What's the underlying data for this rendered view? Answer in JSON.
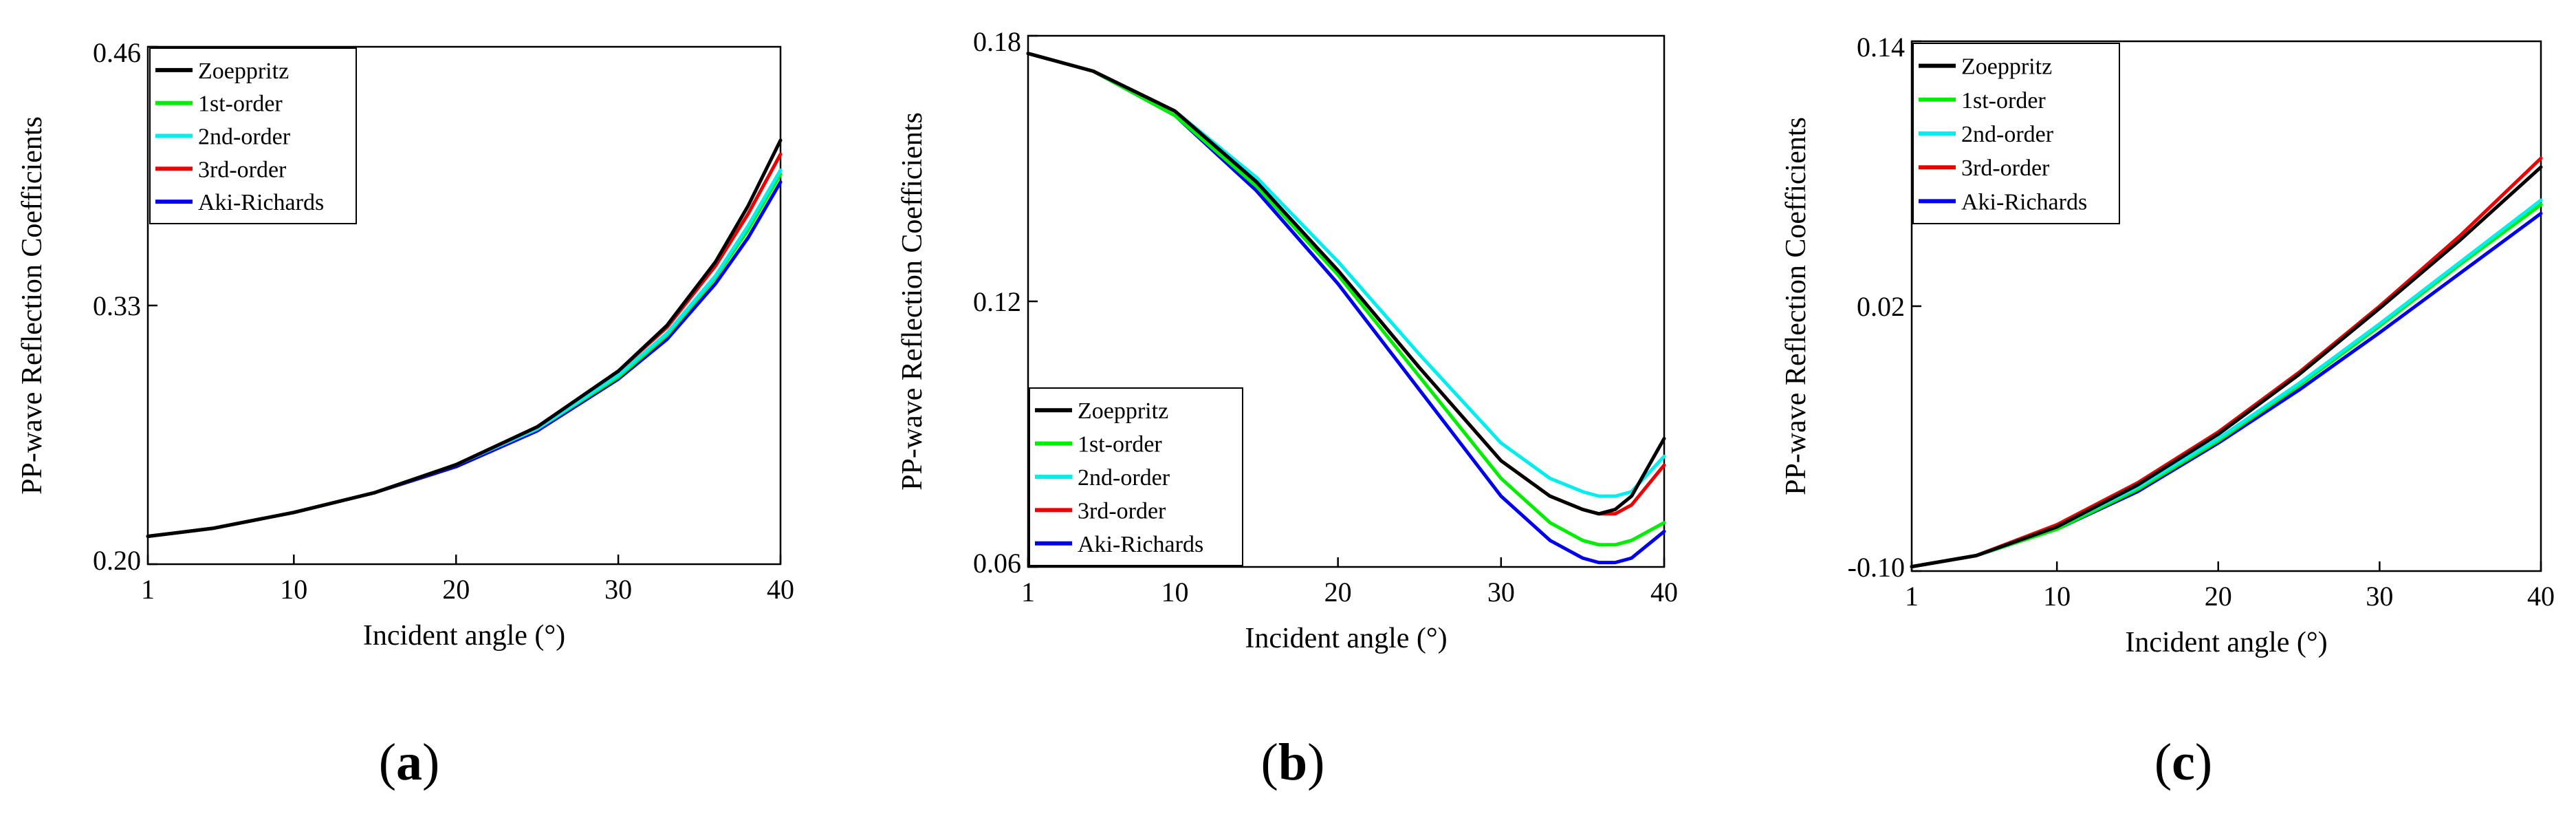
{
  "figure": {
    "panels": [
      "a",
      "b",
      "c"
    ]
  },
  "chart_data": [
    {
      "id": "a",
      "panel_label": "a",
      "type": "line",
      "title": "",
      "xlabel": "Incident angle (°)",
      "ylabel": "PP-wave Reflection Coefficients",
      "xlim": [
        1,
        40
      ],
      "ylim": [
        0.2,
        0.46
      ],
      "xticks": [
        1,
        10,
        20,
        30,
        40
      ],
      "yticks": [
        0.2,
        0.33,
        0.46
      ],
      "ytick_labels": [
        "0.20",
        "0.33",
        "0.46"
      ],
      "grid": false,
      "legend_position": "top-left",
      "x": [
        1,
        5,
        10,
        15,
        20,
        25,
        30,
        33,
        36,
        38,
        40
      ],
      "series": [
        {
          "name": "Zoeppritz",
          "color": "#000000",
          "values": [
            0.214,
            0.218,
            0.226,
            0.236,
            0.25,
            0.269,
            0.297,
            0.32,
            0.352,
            0.38,
            0.413
          ]
        },
        {
          "name": "1st-order",
          "color": "#00ee00",
          "values": [
            0.214,
            0.218,
            0.226,
            0.236,
            0.25,
            0.268,
            0.294,
            0.315,
            0.344,
            0.368,
            0.396
          ]
        },
        {
          "name": "2nd-order",
          "color": "#00eeee",
          "values": [
            0.214,
            0.218,
            0.226,
            0.236,
            0.25,
            0.268,
            0.295,
            0.316,
            0.345,
            0.37,
            0.398
          ]
        },
        {
          "name": "3rd-order",
          "color": "#ee0000",
          "values": [
            0.214,
            0.218,
            0.226,
            0.236,
            0.25,
            0.269,
            0.297,
            0.319,
            0.35,
            0.376,
            0.406
          ]
        },
        {
          "name": "Aki-Richards",
          "color": "#0000ee",
          "values": [
            0.214,
            0.218,
            0.226,
            0.236,
            0.249,
            0.267,
            0.293,
            0.313,
            0.341,
            0.364,
            0.392
          ]
        }
      ]
    },
    {
      "id": "b",
      "panel_label": "b",
      "type": "line",
      "title": "",
      "xlabel": "Incident angle (°)",
      "ylabel": "PP-wave Reflection Coefficients",
      "xlim": [
        1,
        40
      ],
      "ylim": [
        0.06,
        0.18
      ],
      "xticks": [
        1,
        10,
        20,
        30,
        40
      ],
      "yticks": [
        0.06,
        0.12,
        0.18
      ],
      "ytick_labels": [
        "0.06",
        "0.12",
        "0.18"
      ],
      "grid": false,
      "legend_position": "bottom-left",
      "x": [
        1,
        5,
        10,
        15,
        20,
        25,
        30,
        33,
        35,
        36,
        37,
        38,
        40
      ],
      "series": [
        {
          "name": "Zoeppritz",
          "color": "#000000",
          "values": [
            0.176,
            0.172,
            0.163,
            0.147,
            0.127,
            0.105,
            0.084,
            0.076,
            0.073,
            0.072,
            0.073,
            0.076,
            0.089
          ]
        },
        {
          "name": "1st-order",
          "color": "#00ee00",
          "values": [
            0.176,
            0.172,
            0.162,
            0.146,
            0.126,
            0.103,
            0.08,
            0.07,
            0.066,
            0.065,
            0.065,
            0.066,
            0.07
          ]
        },
        {
          "name": "2nd-order",
          "color": "#00eeee",
          "values": [
            0.176,
            0.172,
            0.163,
            0.148,
            0.129,
            0.108,
            0.088,
            0.08,
            0.077,
            0.076,
            0.076,
            0.077,
            0.085
          ]
        },
        {
          "name": "3rd-order",
          "color": "#ee0000",
          "values": [
            0.176,
            0.172,
            0.163,
            0.147,
            0.127,
            0.105,
            0.084,
            0.076,
            0.073,
            0.072,
            0.072,
            0.074,
            0.083
          ]
        },
        {
          "name": "Aki-Richards",
          "color": "#0000ee",
          "values": [
            0.176,
            0.172,
            0.162,
            0.145,
            0.124,
            0.1,
            0.076,
            0.066,
            0.062,
            0.061,
            0.061,
            0.062,
            0.068
          ]
        }
      ]
    },
    {
      "id": "c",
      "panel_label": "c",
      "type": "line",
      "title": "",
      "xlabel": "Incident angle (°)",
      "ylabel": "PP-wave Reflection Coefficients",
      "xlim": [
        1,
        40
      ],
      "ylim": [
        -0.1,
        0.14
      ],
      "xticks": [
        1,
        10,
        20,
        30,
        40
      ],
      "yticks": [
        -0.1,
        0.02,
        0.14
      ],
      "ytick_labels": [
        "-0.10",
        "0.02",
        "0.14"
      ],
      "grid": false,
      "legend_position": "top-left",
      "x": [
        1,
        5,
        10,
        15,
        20,
        25,
        30,
        35,
        40
      ],
      "series": [
        {
          "name": "Zoeppritz",
          "color": "#000000",
          "values": [
            -0.098,
            -0.093,
            -0.08,
            -0.061,
            -0.038,
            -0.011,
            0.019,
            0.05,
            0.083
          ]
        },
        {
          "name": "1st-order",
          "color": "#00ee00",
          "values": [
            -0.098,
            -0.093,
            -0.081,
            -0.063,
            -0.041,
            -0.016,
            0.011,
            0.039,
            0.066
          ]
        },
        {
          "name": "2nd-order",
          "color": "#00eeee",
          "values": [
            -0.098,
            -0.093,
            -0.08,
            -0.062,
            -0.04,
            -0.015,
            0.012,
            0.04,
            0.068
          ]
        },
        {
          "name": "3rd-order",
          "color": "#ee0000",
          "values": [
            -0.098,
            -0.093,
            -0.079,
            -0.06,
            -0.037,
            -0.01,
            0.02,
            0.052,
            0.087
          ]
        },
        {
          "name": "Aki-Richards",
          "color": "#0000ee",
          "values": [
            -0.098,
            -0.093,
            -0.081,
            -0.064,
            -0.042,
            -0.018,
            0.008,
            0.035,
            0.062
          ]
        }
      ]
    }
  ]
}
